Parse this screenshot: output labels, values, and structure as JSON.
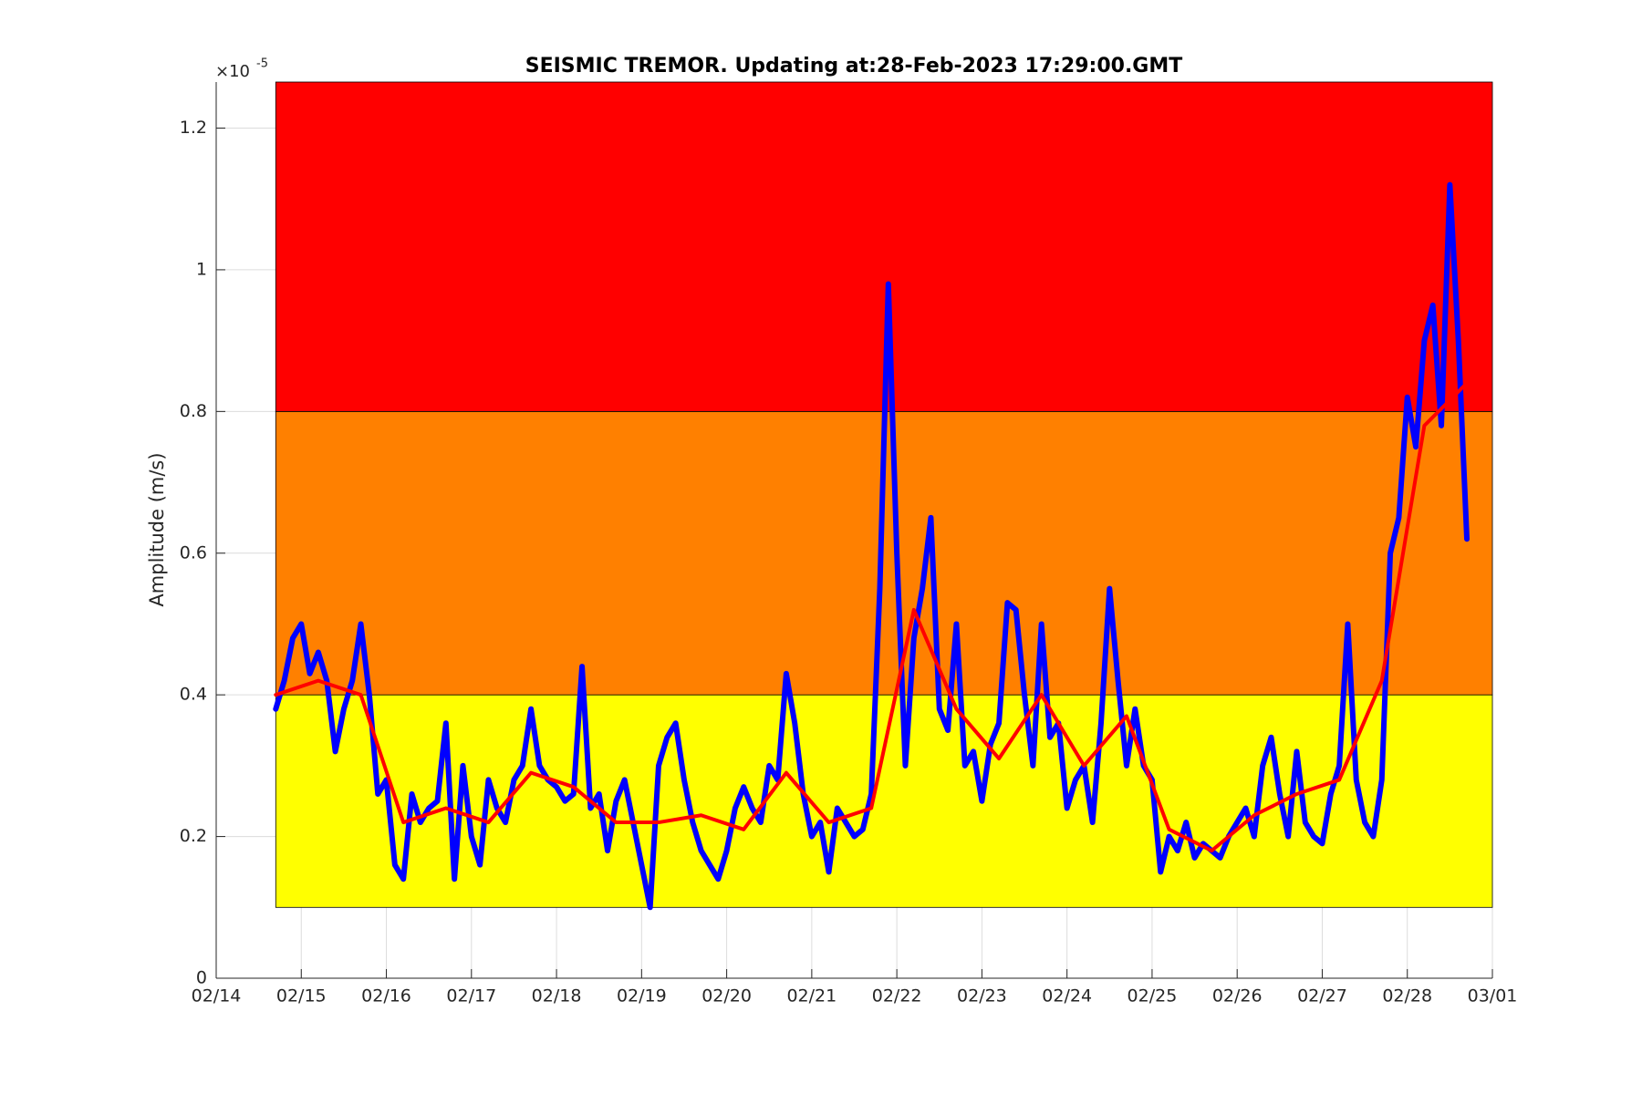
{
  "chart_data": {
    "type": "line",
    "title": "SEISMIC TREMOR. Updating at:28-Feb-2023 17:29:00.GMT",
    "ylabel": "Amplitude (m/s)",
    "y_multiplier": "×10",
    "y_exponent": "-5",
    "xlim": [
      0,
      15
    ],
    "ylim": [
      0,
      1.265
    ],
    "xticks": [
      {
        "value": 0,
        "label": "02/14"
      },
      {
        "value": 1,
        "label": "02/15"
      },
      {
        "value": 2,
        "label": "02/16"
      },
      {
        "value": 3,
        "label": "02/17"
      },
      {
        "value": 4,
        "label": "02/18"
      },
      {
        "value": 5,
        "label": "02/19"
      },
      {
        "value": 6,
        "label": "02/20"
      },
      {
        "value": 7,
        "label": "02/21"
      },
      {
        "value": 8,
        "label": "02/22"
      },
      {
        "value": 9,
        "label": "02/23"
      },
      {
        "value": 10,
        "label": "02/24"
      },
      {
        "value": 11,
        "label": "02/25"
      },
      {
        "value": 12,
        "label": "02/26"
      },
      {
        "value": 13,
        "label": "02/27"
      },
      {
        "value": 14,
        "label": "02/28"
      },
      {
        "value": 15,
        "label": "03/01"
      }
    ],
    "yticks": [
      0,
      0.2,
      0.4,
      0.6,
      0.8,
      1,
      1.2
    ],
    "grid": true,
    "band_xlim": [
      0.7,
      15
    ],
    "bands": [
      {
        "from": 0.1,
        "to": 0.4,
        "color": "#ffff00"
      },
      {
        "from": 0.4,
        "to": 0.8,
        "color": "#ff8000"
      },
      {
        "from": 0.8,
        "to": 1.265,
        "color": "#ff0000"
      }
    ],
    "series": [
      {
        "color": "#0000ff",
        "width": 6,
        "x": [
          0.7,
          0.8,
          0.9,
          1.0,
          1.1,
          1.2,
          1.3,
          1.4,
          1.5,
          1.6,
          1.7,
          1.8,
          1.9,
          2.0,
          2.1,
          2.2,
          2.3,
          2.4,
          2.5,
          2.6,
          2.7,
          2.8,
          2.9,
          3.0,
          3.1,
          3.2,
          3.3,
          3.4,
          3.5,
          3.6,
          3.7,
          3.8,
          3.9,
          4.0,
          4.1,
          4.2,
          4.3,
          4.4,
          4.5,
          4.6,
          4.7,
          4.8,
          4.9,
          5.0,
          5.1,
          5.2,
          5.3,
          5.4,
          5.5,
          5.6,
          5.7,
          5.8,
          5.9,
          6.0,
          6.1,
          6.2,
          6.3,
          6.4,
          6.5,
          6.6,
          6.7,
          6.8,
          6.9,
          7.0,
          7.1,
          7.2,
          7.3,
          7.4,
          7.5,
          7.6,
          7.7,
          7.8,
          7.9,
          8.0,
          8.1,
          8.2,
          8.3,
          8.4,
          8.5,
          8.6,
          8.7,
          8.8,
          8.9,
          9.0,
          9.1,
          9.2,
          9.3,
          9.4,
          9.5,
          9.6,
          9.7,
          9.8,
          9.9,
          10.0,
          10.1,
          10.2,
          10.3,
          10.4,
          10.5,
          10.6,
          10.7,
          10.8,
          10.9,
          11.0,
          11.1,
          11.2,
          11.3,
          11.4,
          11.5,
          11.6,
          11.7,
          11.8,
          11.9,
          12.0,
          12.1,
          12.2,
          12.3,
          12.4,
          12.5,
          12.6,
          12.7,
          12.8,
          12.9,
          13.0,
          13.1,
          13.2,
          13.3,
          13.4,
          13.5,
          13.6,
          13.7,
          13.8,
          13.9,
          14.0,
          14.1,
          14.2,
          14.3,
          14.4,
          14.5,
          14.6,
          14.7
        ],
        "values": [
          0.38,
          0.42,
          0.48,
          0.5,
          0.43,
          0.46,
          0.42,
          0.32,
          0.38,
          0.42,
          0.5,
          0.4,
          0.26,
          0.28,
          0.16,
          0.14,
          0.26,
          0.22,
          0.24,
          0.25,
          0.36,
          0.14,
          0.3,
          0.2,
          0.16,
          0.28,
          0.24,
          0.22,
          0.28,
          0.3,
          0.38,
          0.3,
          0.28,
          0.27,
          0.25,
          0.26,
          0.44,
          0.24,
          0.26,
          0.18,
          0.25,
          0.28,
          0.22,
          0.16,
          0.1,
          0.3,
          0.34,
          0.36,
          0.28,
          0.22,
          0.18,
          0.16,
          0.14,
          0.18,
          0.24,
          0.27,
          0.24,
          0.22,
          0.3,
          0.28,
          0.43,
          0.36,
          0.26,
          0.2,
          0.22,
          0.15,
          0.24,
          0.22,
          0.2,
          0.21,
          0.26,
          0.55,
          0.98,
          0.6,
          0.3,
          0.48,
          0.55,
          0.65,
          0.38,
          0.35,
          0.5,
          0.3,
          0.32,
          0.25,
          0.33,
          0.36,
          0.53,
          0.52,
          0.4,
          0.3,
          0.5,
          0.34,
          0.36,
          0.24,
          0.28,
          0.3,
          0.22,
          0.36,
          0.55,
          0.42,
          0.3,
          0.38,
          0.3,
          0.28,
          0.15,
          0.2,
          0.18,
          0.22,
          0.17,
          0.19,
          0.18,
          0.17,
          0.2,
          0.22,
          0.24,
          0.2,
          0.3,
          0.34,
          0.26,
          0.2,
          0.32,
          0.22,
          0.2,
          0.19,
          0.26,
          0.3,
          0.5,
          0.28,
          0.22,
          0.2,
          0.28,
          0.6,
          0.65,
          0.82,
          0.75,
          0.9,
          0.95,
          0.78,
          1.12,
          0.9,
          0.62
        ]
      },
      {
        "color": "#ff0000",
        "width": 4,
        "x": [
          0.7,
          1.2,
          1.7,
          2.2,
          2.7,
          3.2,
          3.7,
          4.2,
          4.7,
          5.2,
          5.7,
          6.2,
          6.7,
          7.2,
          7.7,
          8.2,
          8.7,
          9.2,
          9.7,
          10.2,
          10.7,
          11.2,
          11.7,
          12.2,
          12.7,
          13.2,
          13.7,
          14.2,
          14.7
        ],
        "values": [
          0.4,
          0.42,
          0.4,
          0.22,
          0.24,
          0.22,
          0.29,
          0.27,
          0.22,
          0.22,
          0.23,
          0.21,
          0.29,
          0.22,
          0.24,
          0.52,
          0.38,
          0.31,
          0.4,
          0.3,
          0.37,
          0.21,
          0.18,
          0.23,
          0.26,
          0.28,
          0.42,
          0.78,
          0.84
        ]
      }
    ]
  }
}
